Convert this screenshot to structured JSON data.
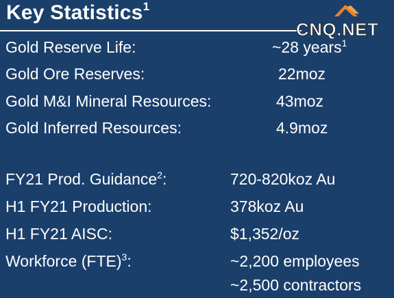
{
  "header": {
    "title": "Key Statistics",
    "title_sup": "1",
    "logo_text": "CNQ.NET"
  },
  "reserves": [
    {
      "label": "Gold Reserve Life:",
      "value": "~28 years",
      "value_sup": "1"
    },
    {
      "label": "Gold Ore Reserves:",
      "value": "22moz"
    },
    {
      "label": "Gold M&I Mineral Resources:",
      "value": "43moz"
    },
    {
      "label": "Gold Inferred Resources:",
      "value": "4.9moz"
    }
  ],
  "operations": [
    {
      "label": "FY21 Prod. Guidance",
      "label_sup": "2",
      "label_tail": ":",
      "value": "720-820koz Au"
    },
    {
      "label": "H1 FY21 Production:",
      "value": "378koz Au"
    },
    {
      "label": "H1 FY21 AISC:",
      "value": "$1,352/oz"
    },
    {
      "label": "Workforce (FTE)",
      "label_sup": "3",
      "label_tail": ":",
      "value": "~2,200 employees",
      "value2": "~2,500 contractors"
    }
  ],
  "colors": {
    "background": "#1b3f6b",
    "text": "#ffffff",
    "logo_accent": "#e8842a"
  }
}
